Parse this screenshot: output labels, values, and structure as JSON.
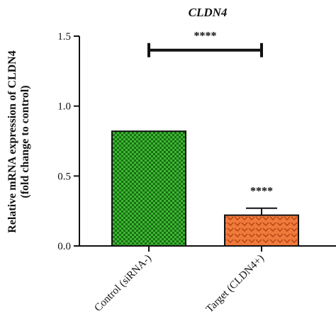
{
  "chart_data": {
    "type": "bar",
    "title": "CLDN4",
    "ylabel_line1": "Relative mRNA expression of CLDN4",
    "ylabel_line2": "(fold change to control)",
    "xlabel": "",
    "ylim": [
      0,
      1.5
    ],
    "yticks": [
      "0.0",
      "0.5",
      "1.0",
      "1.5"
    ],
    "ytick_values": [
      0,
      0.5,
      1.0,
      1.5
    ],
    "categories": [
      "Control (siRNA-)",
      "Target (CLDN4+)"
    ],
    "values": [
      0.82,
      0.22
    ],
    "errors": [
      0,
      0.05
    ],
    "bar_colors": [
      "#3cb832",
      "#f07a3c"
    ],
    "bar_pattern_colors": [
      "#1a6e14",
      "#b34410"
    ],
    "bar_annotations": [
      "",
      "****"
    ],
    "bracket": {
      "from": 0,
      "to": 1,
      "y": 1.4,
      "label": "****"
    },
    "grid": false,
    "legend": "none"
  }
}
